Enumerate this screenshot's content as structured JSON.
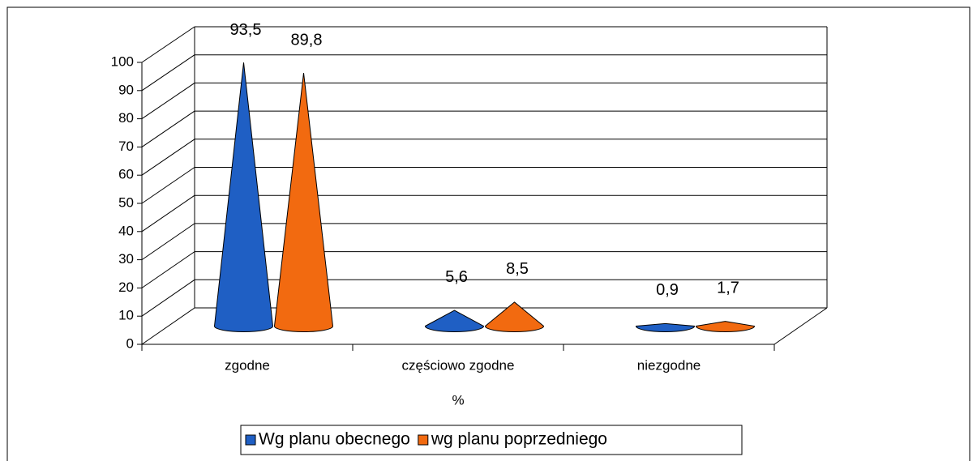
{
  "chart_data": {
    "type": "cone3d",
    "categories": [
      "zgodne",
      "częściowo zgodne",
      "niezgodne"
    ],
    "x_label": "%",
    "series": [
      {
        "name": "Wg planu obecnego",
        "color": "#1f5fc4",
        "values": [
          93.5,
          5.6,
          0.9
        ],
        "value_labels": [
          "93,5",
          "5,6",
          "0,9"
        ]
      },
      {
        "name": "wg planu poprzedniego",
        "color": "#f26a10",
        "values": [
          89.8,
          8.5,
          1.7
        ],
        "value_labels": [
          "89,8",
          "8,5",
          "1,7"
        ]
      }
    ],
    "ylim": [
      0,
      100
    ],
    "yticks": [
      0,
      10,
      20,
      30,
      40,
      50,
      60,
      70,
      80,
      90,
      100
    ],
    "grid": true,
    "legend": "bottom"
  }
}
